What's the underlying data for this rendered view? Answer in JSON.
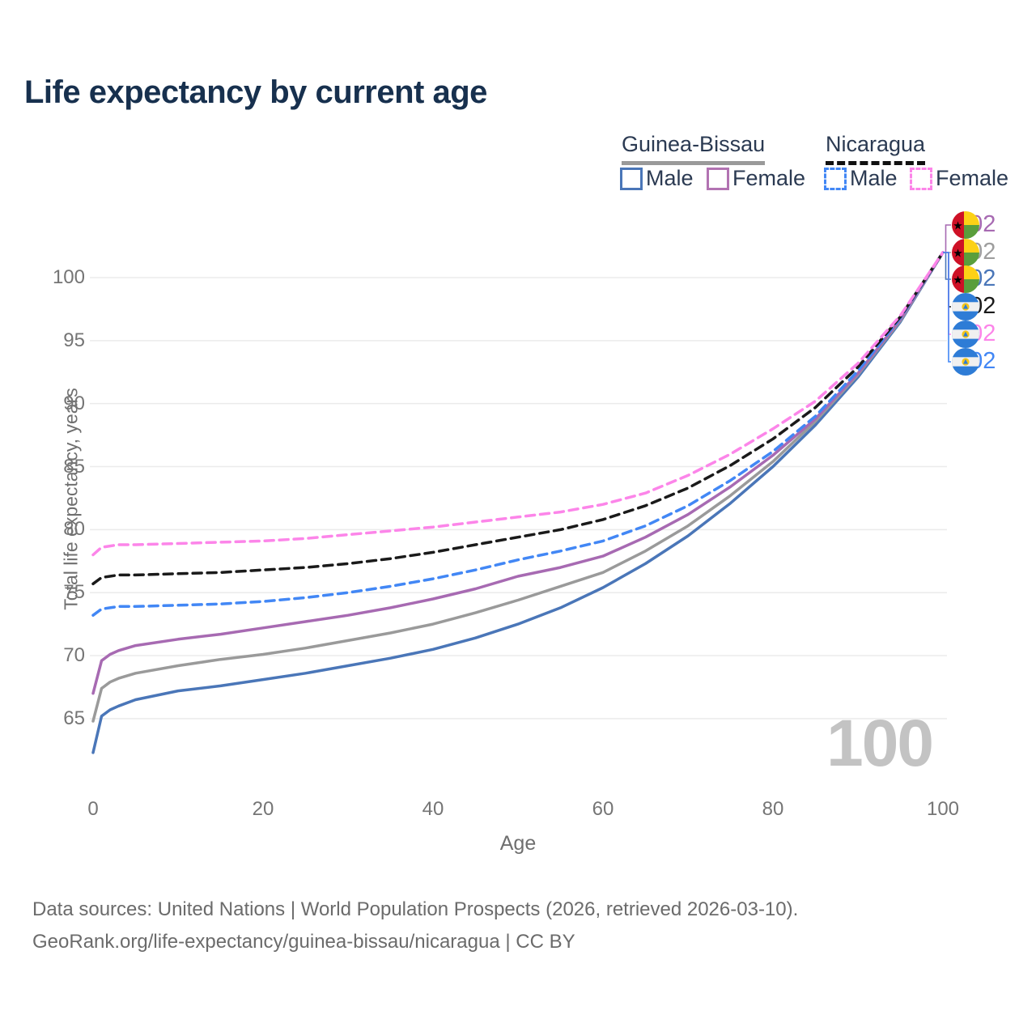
{
  "title": "Life expectancy by current age",
  "legend": {
    "groups": [
      {
        "label": "Guinea-Bissau",
        "line_style": "solid",
        "underline_color": "#9a9a9a",
        "items": [
          {
            "label": "Male",
            "color": "#4a76b8"
          },
          {
            "label": "Female",
            "color": "#b273b2"
          }
        ]
      },
      {
        "label": "Nicaragua",
        "line_style": "dashed",
        "underline_color": "#111111",
        "items": [
          {
            "label": "Male",
            "color": "#4287f5"
          },
          {
            "label": "Female",
            "color": "#fc85e9"
          }
        ]
      }
    ]
  },
  "watermark_age": "100",
  "axes": {
    "y_title": "Total life expectancy, years",
    "x_title": "Age",
    "y_ticks": [
      65,
      70,
      75,
      80,
      85,
      90,
      95,
      100
    ],
    "x_ticks": [
      0,
      20,
      40,
      60,
      80,
      100
    ]
  },
  "end_labels": [
    {
      "flag": "guinea-bissau-flag",
      "value": "102",
      "color": "#a76ab2",
      "series": "guinea-bissau-female"
    },
    {
      "flag": "guinea-bissau-flag",
      "value": "102",
      "color": "#9e9e9e",
      "series": "guinea-bissau-both"
    },
    {
      "flag": "guinea-bissau-flag",
      "value": "102",
      "color": "#4a76b8",
      "series": "guinea-bissau-male"
    },
    {
      "flag": "nicaragua-flag",
      "value": "102",
      "color": "#1a1a1a",
      "series": "nicaragua-both"
    },
    {
      "flag": "nicaragua-flag",
      "value": "102",
      "color": "#fc85e9",
      "series": "nicaragua-female"
    },
    {
      "flag": "nicaragua-flag",
      "value": "102",
      "color": "#4287f5",
      "series": "nicaragua-male"
    }
  ],
  "footer": {
    "line1": "Data sources: United Nations | World Population Prospects (2026, retrieved 2026-03-10).",
    "line2": "GeoRank.org/life-expectancy/guinea-bissau/nicaragua | CC BY"
  },
  "chart_data": {
    "type": "line",
    "title": "Life expectancy by current age",
    "xlabel": "Age",
    "ylabel": "Total life expectancy, years",
    "xlim": [
      0,
      100
    ],
    "ylim": [
      62,
      103
    ],
    "x_ticks": [
      0,
      20,
      40,
      60,
      80,
      100
    ],
    "y_ticks": [
      65,
      70,
      75,
      80,
      85,
      90,
      95,
      100
    ],
    "grid": "horizontal-only",
    "legend_position": "top-right",
    "x": [
      0,
      1,
      2,
      3,
      5,
      10,
      15,
      20,
      25,
      30,
      35,
      40,
      45,
      50,
      55,
      60,
      65,
      70,
      75,
      80,
      85,
      90,
      95,
      100
    ],
    "series": [
      {
        "name": "Guinea-Bissau Male",
        "color": "#4a76b8",
        "dash": "solid",
        "end_label": 102,
        "values": [
          62.3,
          65.2,
          65.7,
          66.0,
          66.5,
          67.2,
          67.6,
          68.1,
          68.6,
          69.2,
          69.8,
          70.5,
          71.4,
          72.5,
          73.8,
          75.4,
          77.3,
          79.5,
          82.1,
          85.0,
          88.3,
          92.1,
          96.5,
          102
        ]
      },
      {
        "name": "Guinea-Bissau Both sexes",
        "color": "#9a9a9a",
        "dash": "solid",
        "end_label": 102,
        "values": [
          64.8,
          67.4,
          67.9,
          68.2,
          68.6,
          69.2,
          69.7,
          70.1,
          70.6,
          71.2,
          71.8,
          72.5,
          73.4,
          74.4,
          75.5,
          76.6,
          78.3,
          80.3,
          82.7,
          85.4,
          88.6,
          92.3,
          96.6,
          102
        ]
      },
      {
        "name": "Guinea-Bissau Female",
        "color": "#a76ab2",
        "dash": "solid",
        "end_label": 102,
        "values": [
          67.0,
          69.6,
          70.1,
          70.4,
          70.8,
          71.3,
          71.7,
          72.2,
          72.7,
          73.2,
          73.8,
          74.5,
          75.3,
          76.3,
          77.0,
          77.9,
          79.4,
          81.2,
          83.4,
          85.9,
          88.8,
          92.4,
          96.7,
          102
        ]
      },
      {
        "name": "Nicaragua Male",
        "color": "#4287f5",
        "dash": "dashed",
        "end_label": 102,
        "values": [
          73.2,
          73.7,
          73.8,
          73.9,
          73.9,
          74.0,
          74.1,
          74.3,
          74.6,
          75.0,
          75.5,
          76.1,
          76.8,
          77.6,
          78.3,
          79.1,
          80.3,
          81.9,
          83.9,
          86.2,
          89.0,
          92.6,
          96.8,
          102
        ]
      },
      {
        "name": "Nicaragua Both sexes",
        "color": "#1a1a1a",
        "dash": "dashed",
        "end_label": 102,
        "values": [
          75.7,
          76.2,
          76.3,
          76.4,
          76.4,
          76.5,
          76.6,
          76.8,
          77.0,
          77.3,
          77.7,
          78.2,
          78.8,
          79.4,
          80.0,
          80.8,
          81.9,
          83.3,
          85.1,
          87.2,
          89.7,
          92.9,
          96.9,
          102
        ]
      },
      {
        "name": "Nicaragua Female",
        "color": "#fc85e9",
        "dash": "dashed",
        "end_label": 102,
        "values": [
          78.0,
          78.6,
          78.7,
          78.8,
          78.8,
          78.9,
          79.0,
          79.1,
          79.3,
          79.6,
          79.9,
          80.2,
          80.6,
          81.0,
          81.4,
          82.0,
          82.9,
          84.3,
          86.0,
          88.0,
          90.2,
          93.2,
          97.0,
          102
        ]
      }
    ]
  }
}
